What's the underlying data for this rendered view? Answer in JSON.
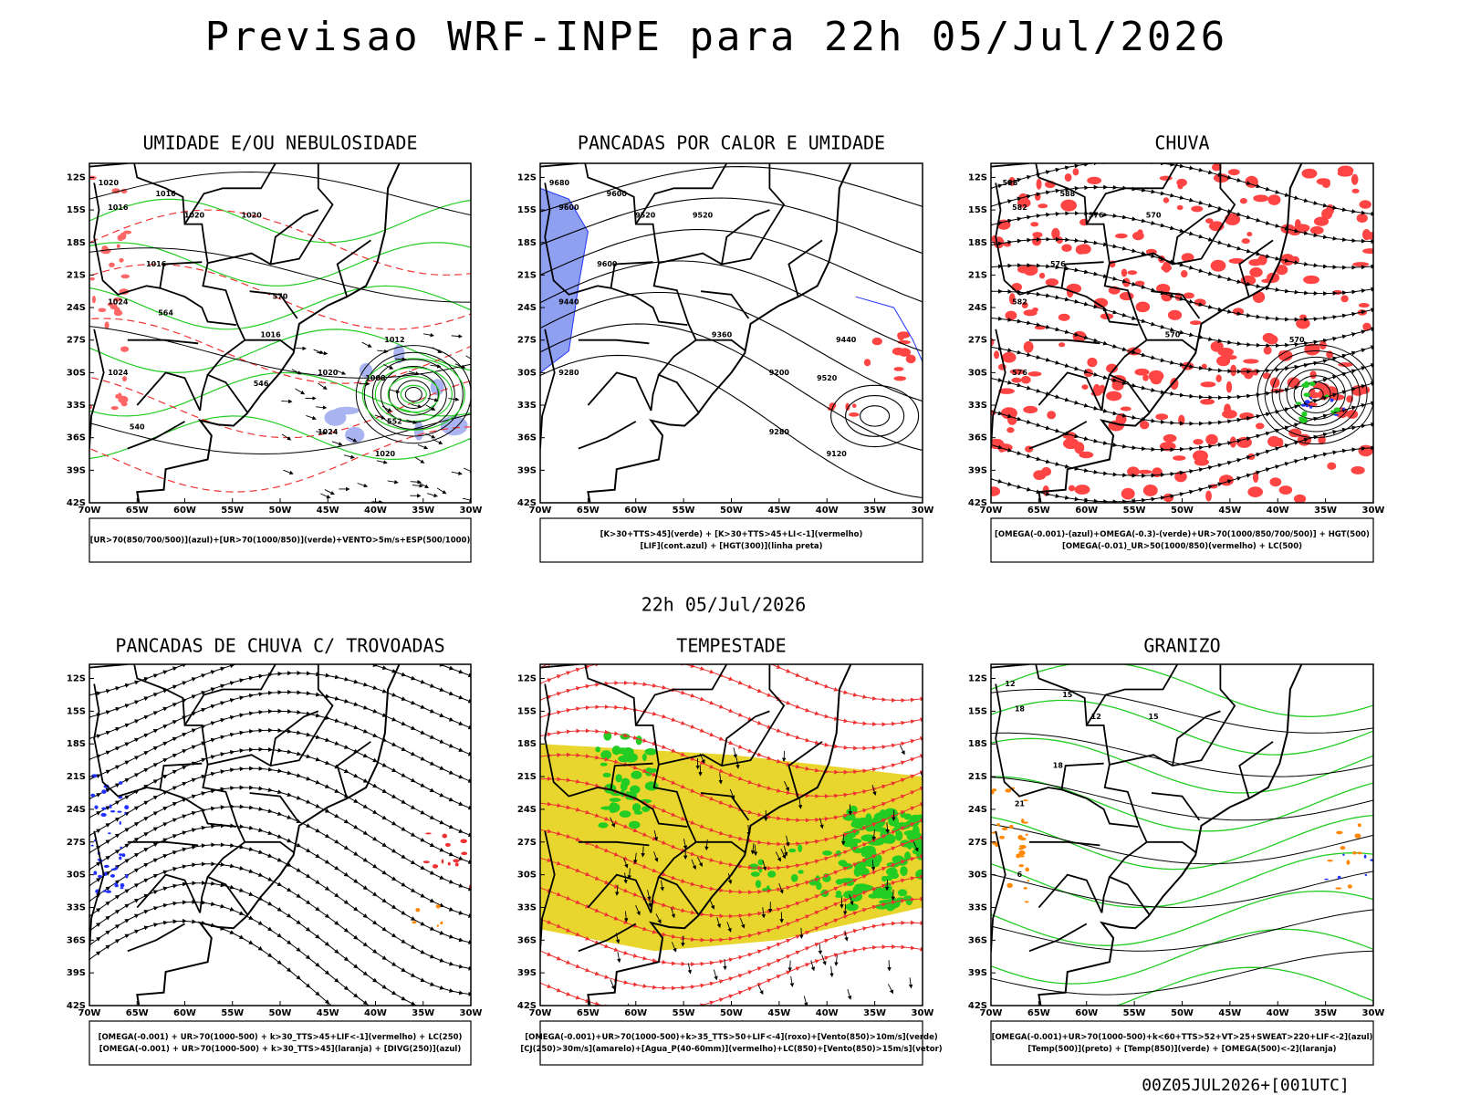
{
  "title": "Previsao WRF-INPE  para 22h 05/Jul/2026",
  "subtitle": "22h 05/Jul/2026",
  "footer": "00Z05JUL2026+[001UTC]",
  "lat_ticks": [
    {
      "value": -12,
      "label": "12S"
    },
    {
      "value": -15,
      "label": "15S"
    },
    {
      "value": -18,
      "label": "18S"
    },
    {
      "value": -21,
      "label": "21S"
    },
    {
      "value": -24,
      "label": "24S"
    },
    {
      "value": -27,
      "label": "27S"
    },
    {
      "value": -30,
      "label": "30S"
    },
    {
      "value": -33,
      "label": "33S"
    },
    {
      "value": -36,
      "label": "36S"
    },
    {
      "value": -39,
      "label": "39S"
    },
    {
      "value": -42,
      "label": "42S"
    }
  ],
  "lon_ticks": [
    {
      "value": -70,
      "label": "70W"
    },
    {
      "value": -65,
      "label": "65W"
    },
    {
      "value": -60,
      "label": "60W"
    },
    {
      "value": -55,
      "label": "55W"
    },
    {
      "value": -50,
      "label": "50W"
    },
    {
      "value": -45,
      "label": "45W"
    },
    {
      "value": -40,
      "label": "40W"
    },
    {
      "value": -35,
      "label": "35W"
    },
    {
      "value": -30,
      "label": "30W"
    }
  ],
  "panels": [
    {
      "title": "UMIDADE E/OU NEBULOSIDADE",
      "legend": [
        "[UR>70(850/700/500)](azul)+[UR>70(1000/850)](verde)+VENTO>5m/s+ESP(500/1000)"
      ],
      "contour_labels": [
        "1020",
        "1016",
        "1016",
        "1020",
        "1020",
        "1016",
        "1024",
        "1024",
        "1016",
        "1012",
        "1008",
        "1020",
        "1024",
        "1020",
        "570",
        "564",
        "552",
        "546",
        "540"
      ]
    },
    {
      "title": "PANCADAS POR CALOR E UMIDADE",
      "legend": [
        "[K>30+TTS>45](verde) + [K>30+TTS>45+LI<-1](vermelho)",
        "[LIF](cont.azul) + [HGT(300)](linha preta)"
      ],
      "contour_labels": [
        "9680",
        "9600",
        "9600",
        "9520",
        "9520",
        "9600",
        "9440",
        "9280",
        "9360",
        "9440",
        "9520",
        "9200",
        "9280",
        "9120"
      ]
    },
    {
      "title": "CHUVA",
      "legend": [
        "[OMEGA(-0.001)-(azul)+OMEGA(-0.3)-(verde)+UR>70(1000/850/700/500)] + HGT(500)",
        "[OMEGA(-0.01)_UR>50(1000/850)(vermelho) + LC(500)"
      ],
      "contour_labels": [
        "588",
        "588",
        "582",
        "576",
        "570",
        "576",
        "582",
        "576",
        "570",
        "570"
      ]
    },
    {
      "title": "PANCADAS DE CHUVA C/ TROVOADAS",
      "legend": [
        "[OMEGA(-0.001) + UR>70(1000-500) + k>30_TTS>45+LIF<-1](vermelho) + LC(250)",
        "[OMEGA(-0.001) + UR>70(1000-500) + k>30_TTS>45](laranja) + [DIVG(250)](azul)"
      ],
      "contour_labels": []
    },
    {
      "title": "TEMPESTADE",
      "legend": [
        "[OMEGA(-0.001)+UR>70(1000-500)+k>35_TTS>50+LIF<-4](roxo)+[Vento(850)>10m/s](verde)",
        "[CJ(250)>30m/s](amarelo)+[Agua_P(40-60mm)](vermelho)+LC(850)+[Vento(850)>15m/s](vetor)"
      ],
      "contour_labels": []
    },
    {
      "title": "GRANIZO",
      "legend": [
        "[OMEGA(-0.001)+UR>70(1000-500)+k<60+TTS>52+VT>25+SWEAT>220+LIF<-2](azul)",
        "[Temp(500)](preto) + [Temp(850)](verde) + [OMEGA(500)<-2](laranja)"
      ],
      "contour_labels": [
        "12",
        "15",
        "18",
        "12",
        "15",
        "18",
        "21",
        "6"
      ]
    }
  ]
}
